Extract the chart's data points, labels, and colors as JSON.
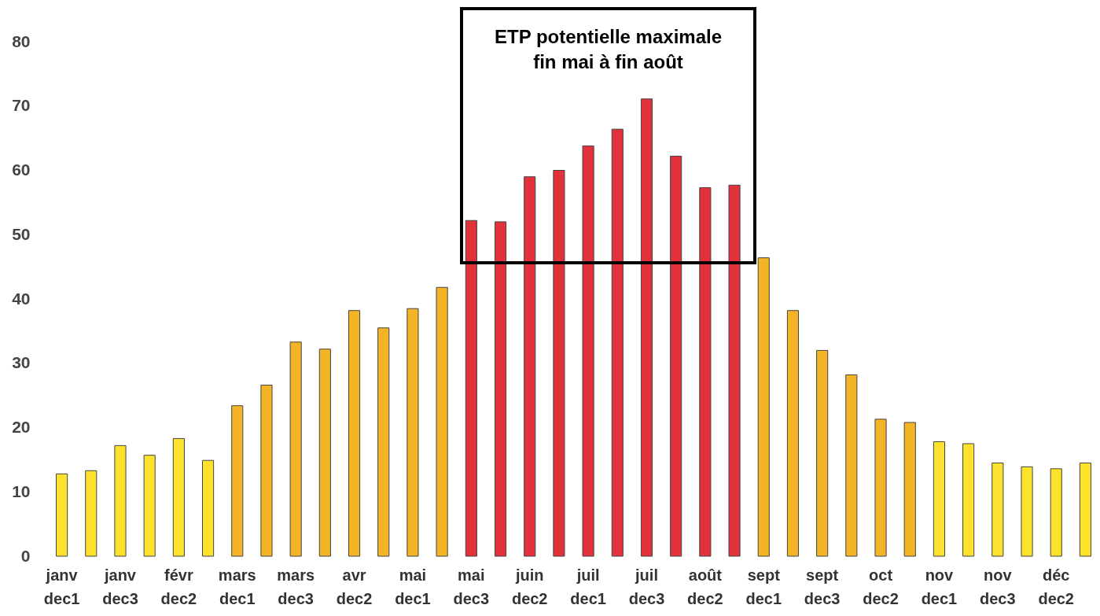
{
  "chart_data": {
    "type": "bar",
    "categories": [
      "janv dec1",
      null,
      "janv dec3",
      null,
      "févr dec2",
      null,
      "mars dec1",
      null,
      "mars dec3",
      null,
      "avr dec2",
      null,
      "mai dec1",
      null,
      "mai dec3",
      null,
      "juin dec2",
      null,
      "juil dec1",
      null,
      "juil dec3",
      null,
      "août dec2",
      null,
      "sept dec1",
      null,
      "sept dec3",
      null,
      "oct dec2",
      null,
      "nov dec1",
      null,
      "nov dec3",
      null,
      "déc dec2",
      null
    ],
    "values": [
      12.8,
      13.3,
      17.2,
      15.7,
      18.3,
      14.9,
      23.4,
      26.6,
      33.3,
      32.2,
      38.2,
      35.5,
      38.5,
      41.8,
      52.2,
      52,
      59,
      60,
      63.8,
      66.4,
      71.1,
      62.2,
      57.3,
      57.7,
      46.4,
      38.2,
      32,
      28.2,
      21.3,
      20.8,
      17.8,
      17.5,
      14.5,
      13.9,
      13.6,
      14.5
    ],
    "colors": [
      "#fde22d",
      "#fde22d",
      "#fde22d",
      "#fde22d",
      "#fde22d",
      "#fde22d",
      "#f3b425",
      "#f3b425",
      "#f3b425",
      "#f3b425",
      "#f3b425",
      "#f3b425",
      "#f3b425",
      "#f3b425",
      "#e3313c",
      "#e3313c",
      "#e3313c",
      "#e3313c",
      "#e3313c",
      "#e3313c",
      "#e3313c",
      "#e3313c",
      "#e3313c",
      "#e3313c",
      "#f3b425",
      "#f3b425",
      "#f3b425",
      "#f3b425",
      "#f3b425",
      "#f3b425",
      "#fde22d",
      "#fde22d",
      "#fde22d",
      "#fde22d",
      "#fde22d",
      "#fde22d"
    ],
    "ylim": [
      0,
      80
    ],
    "yticks": [
      0,
      10,
      20,
      30,
      40,
      50,
      60,
      70,
      80
    ],
    "grid": false,
    "annotations": [
      "ETP potentielle maximale\nfin mai à fin août"
    ]
  }
}
